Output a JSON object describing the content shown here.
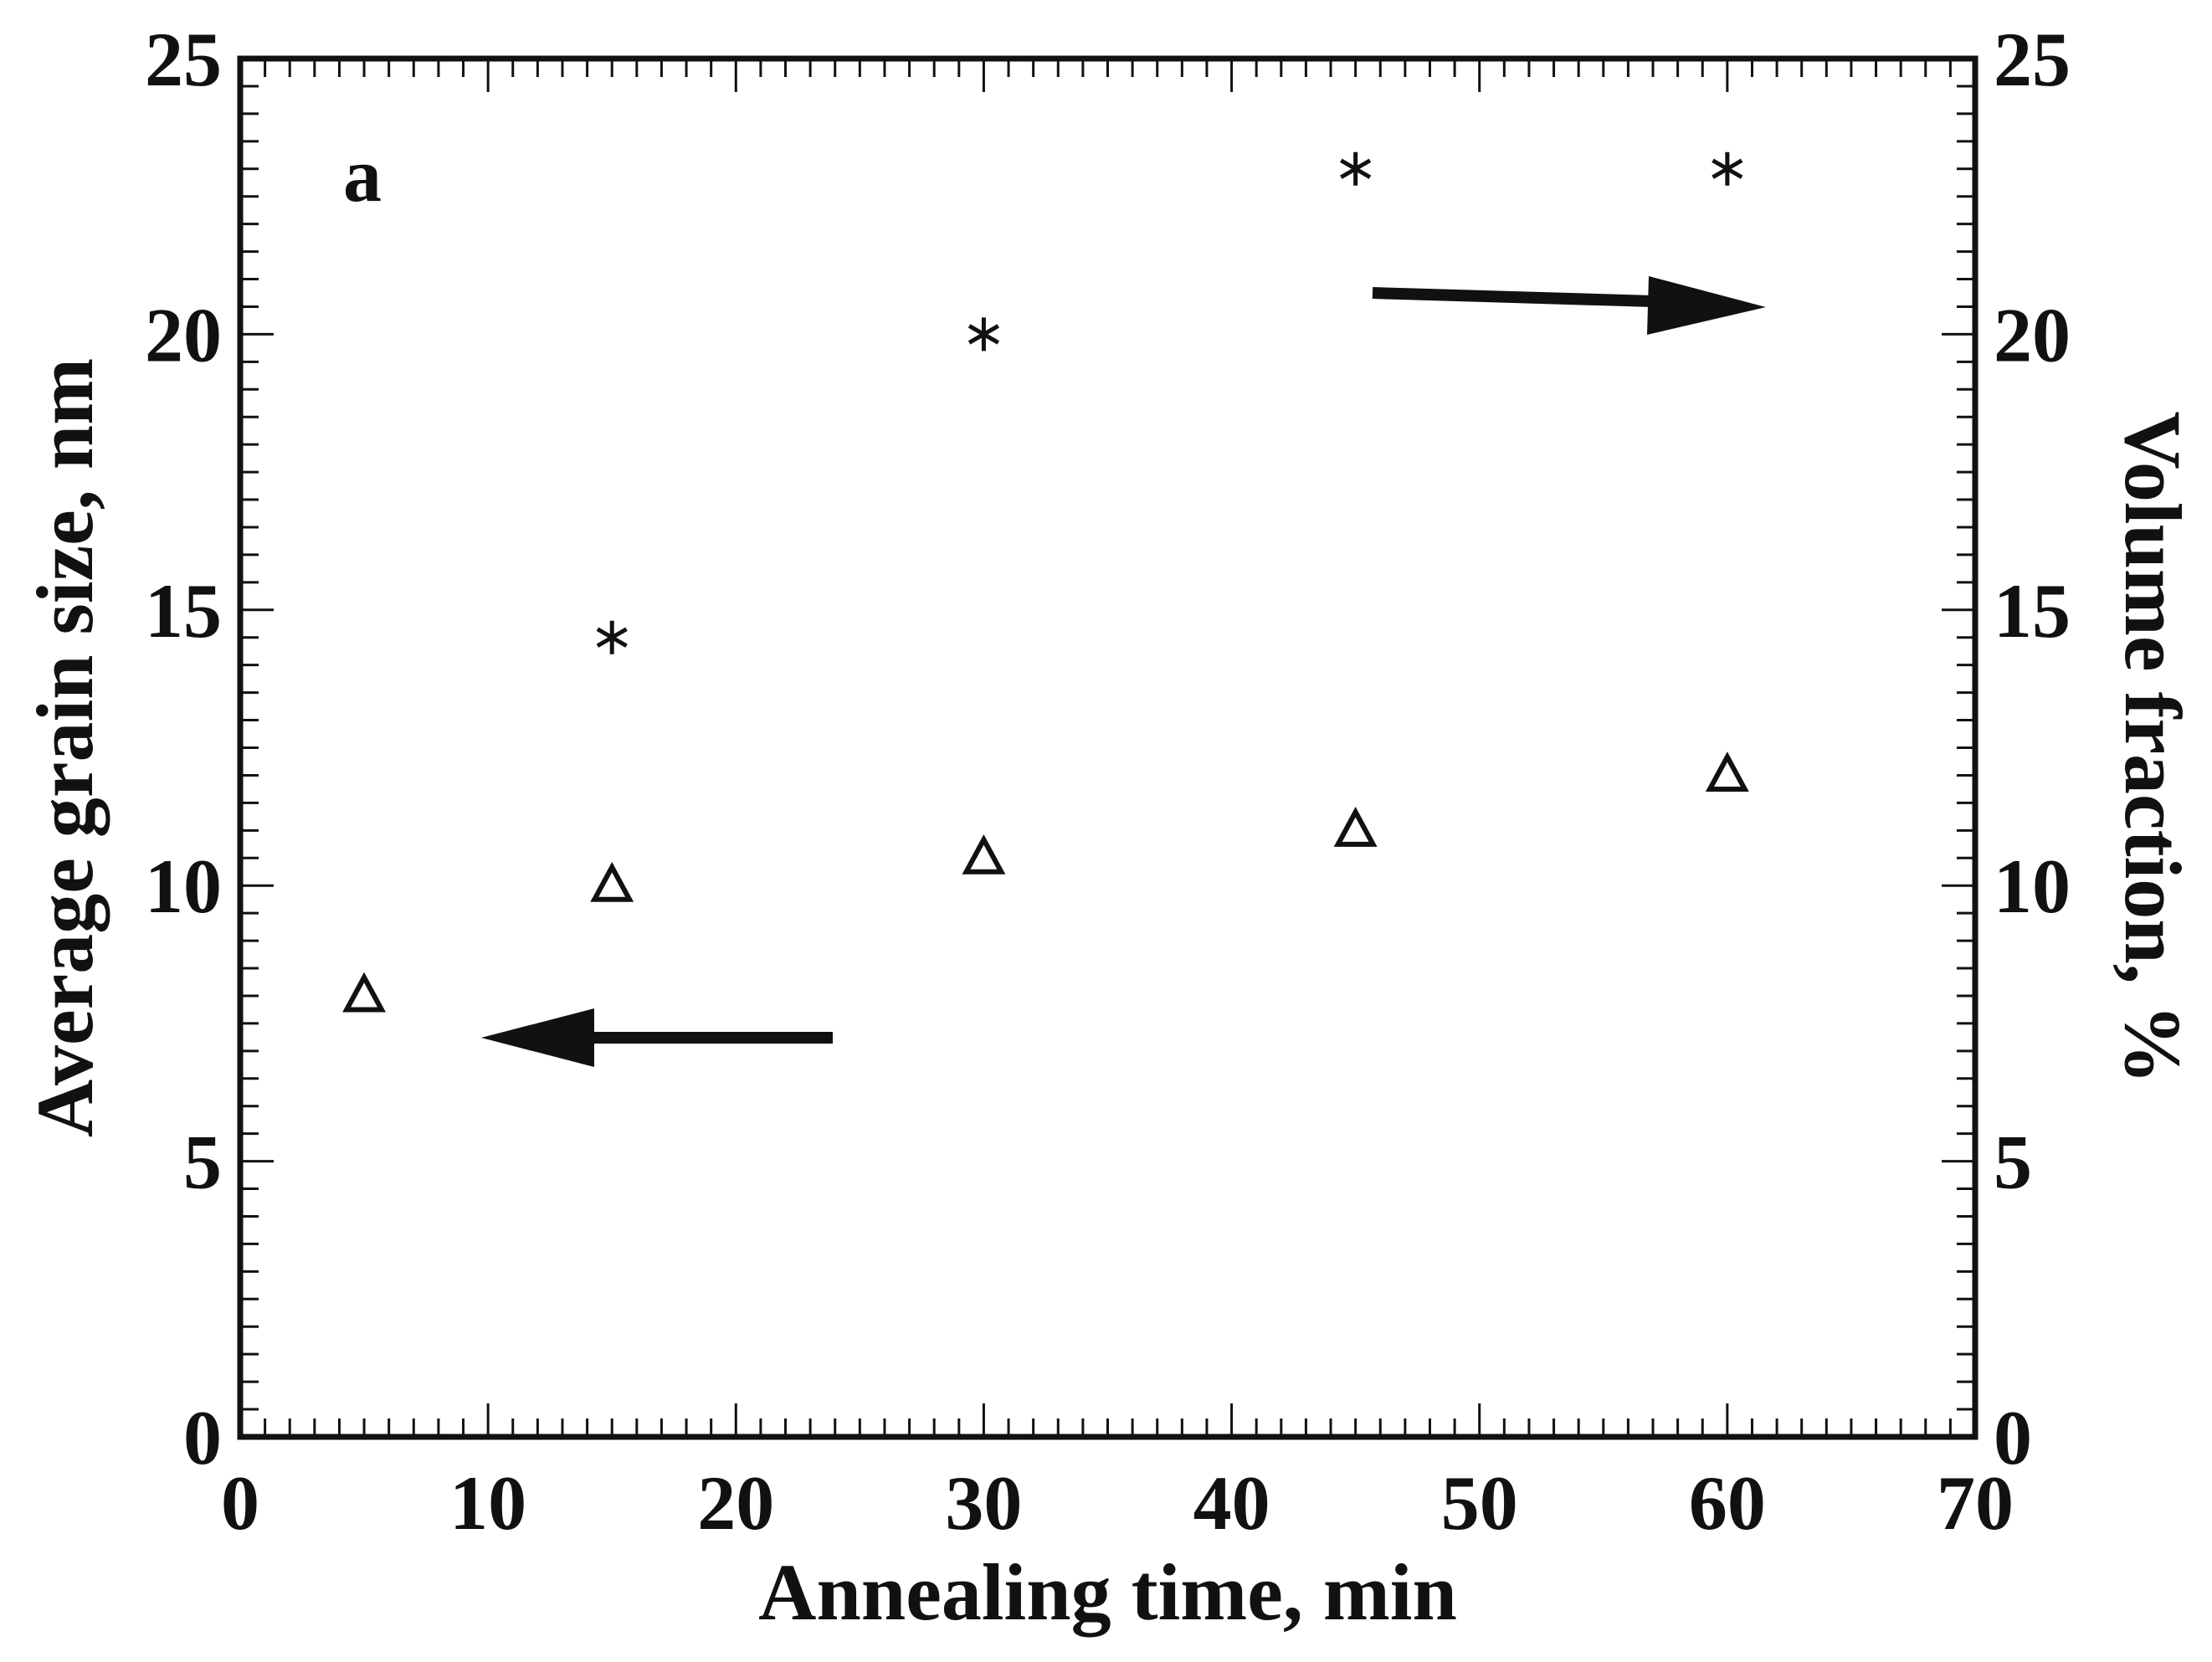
{
  "chart_data": {
    "type": "scatter",
    "panel_label": "a",
    "xlabel": "Annealing time, min",
    "ylabel_left": "Average grain size, nm",
    "ylabel_right": "Volume fraction, %",
    "xlim": [
      0,
      70
    ],
    "ylim_left": [
      0,
      25
    ],
    "ylim_right": [
      0,
      25
    ],
    "x_ticks": [
      "0",
      "10",
      "20",
      "30",
      "40",
      "50",
      "60",
      "70"
    ],
    "y_ticks_left": [
      "0",
      "5",
      "10",
      "15",
      "20",
      "25"
    ],
    "y_ticks_right": [
      "0",
      "5",
      "10",
      "15",
      "20",
      "25"
    ],
    "grid": false,
    "series": [
      {
        "marker": "triangle",
        "axis": "left",
        "x": [
          5,
          15,
          30,
          45,
          60
        ],
        "y": [
          8.0,
          10.0,
          10.5,
          11.0,
          12.0
        ]
      },
      {
        "marker": "asterisk",
        "axis": "right",
        "x": [
          15,
          30,
          45,
          60
        ],
        "y": [
          14.5,
          20.0,
          23.0,
          23.0
        ]
      }
    ],
    "annotations": [
      {
        "type": "arrow",
        "direction": "left",
        "meaning": "triangles use left axis"
      },
      {
        "type": "arrow",
        "direction": "right",
        "meaning": "asterisks use right axis"
      }
    ]
  }
}
